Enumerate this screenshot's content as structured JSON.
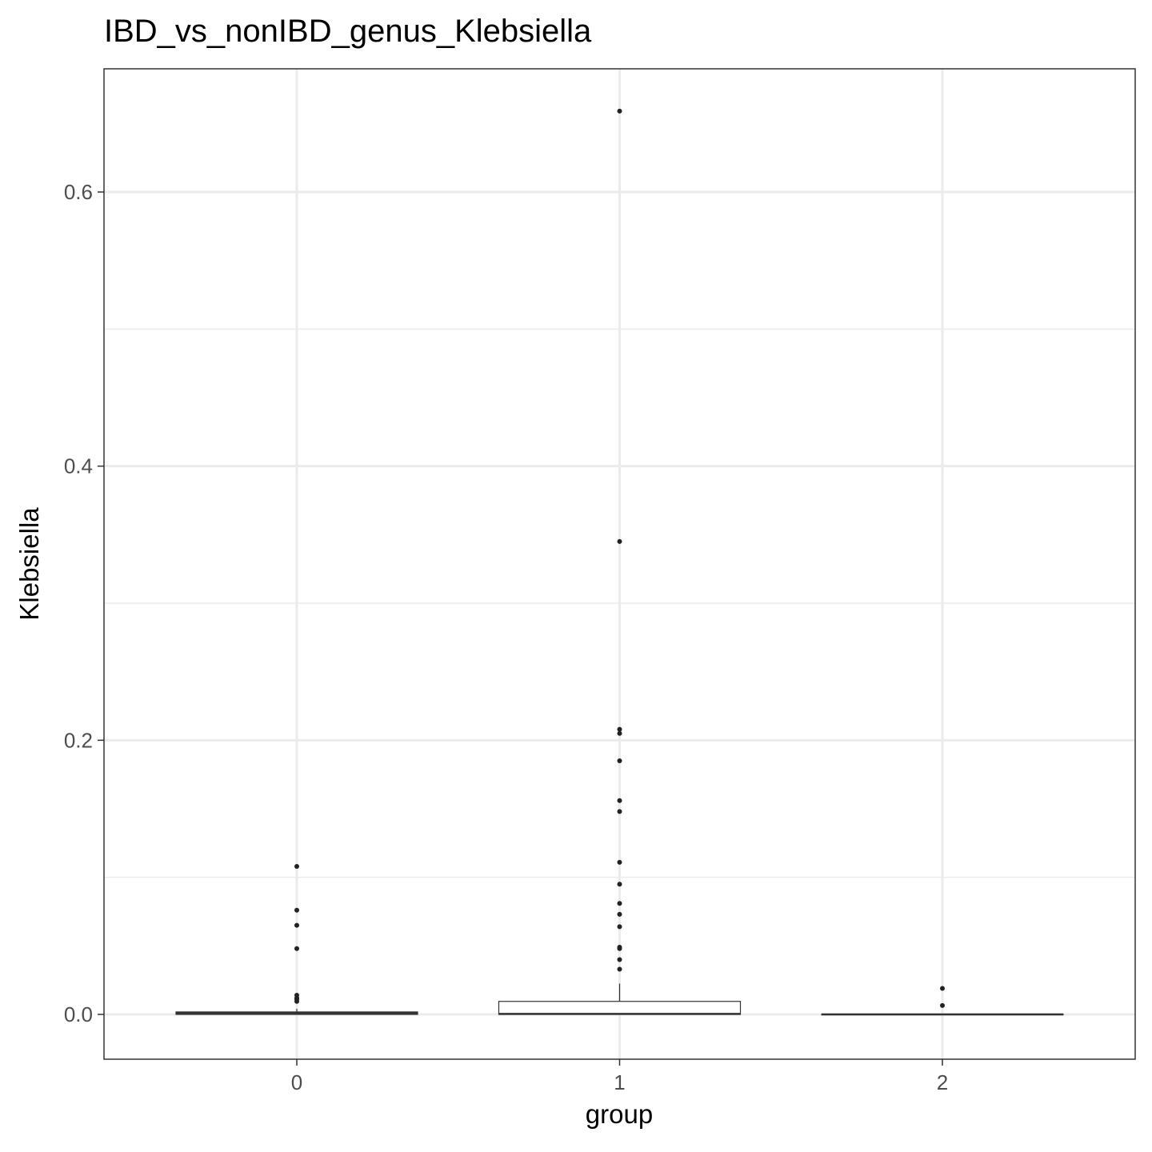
{
  "chart_data": {
    "type": "box",
    "title": "IBD_vs_nonIBD_genus_Klebsiella",
    "xlabel": "group",
    "ylabel": "Klebsiella",
    "categories": [
      "0",
      "1",
      "2"
    ],
    "x_tick_labels": [
      "0",
      "1",
      "2"
    ],
    "y_ticks": [
      0.0,
      0.2,
      0.4,
      0.6
    ],
    "y_tick_labels": [
      "0.0",
      "0.2",
      "0.4",
      "0.6"
    ],
    "y_minor_ticks": [
      0.1,
      0.3,
      0.5
    ],
    "ylim": [
      -0.033,
      0.69
    ],
    "grid": true,
    "legend": "none",
    "boxes": [
      {
        "group": "0",
        "min": 0.0,
        "q1": 0.0,
        "median": 0.0008,
        "q3": 0.0018,
        "max": 0.004,
        "outliers": [
          0.108,
          0.076,
          0.065,
          0.048,
          0.014,
          0.012,
          0.011,
          0.0095
        ]
      },
      {
        "group": "1",
        "min": 0.0,
        "q1": 0.0,
        "median": 0.0004,
        "q3": 0.0095,
        "max": 0.0225,
        "outliers": [
          0.659,
          0.345,
          0.208,
          0.205,
          0.185,
          0.156,
          0.148,
          0.111,
          0.095,
          0.081,
          0.073,
          0.064,
          0.049,
          0.048,
          0.04,
          0.033
        ]
      },
      {
        "group": "2",
        "min": 0.0,
        "q1": 0.0,
        "median": 0.0,
        "q3": 0.0,
        "max": 0.0,
        "outliers": [
          0.019,
          0.0065
        ]
      }
    ],
    "colors": {
      "box_fill": "#ffffff",
      "box_stroke": "#333333",
      "grid": "#ebebeb",
      "panel_border": "#333333",
      "point": "#222222"
    }
  }
}
